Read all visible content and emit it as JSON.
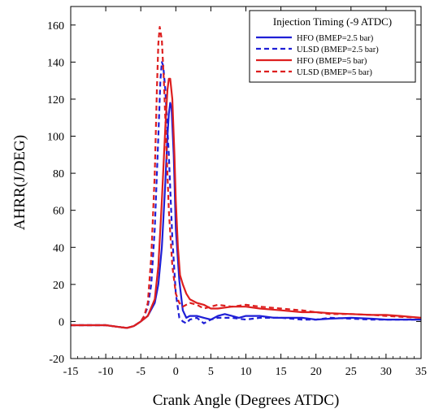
{
  "chart_data": {
    "type": "line",
    "title": "",
    "xlabel": "Crank Angle (Degrees ATDC)",
    "ylabel": "AHRR(J/DEG)",
    "xlim": [
      -15,
      35
    ],
    "ylim": [
      -20,
      170
    ],
    "xticks": [
      -15,
      -10,
      -5,
      0,
      5,
      10,
      15,
      20,
      25,
      30,
      35
    ],
    "yticks": [
      -20,
      0,
      20,
      40,
      60,
      80,
      100,
      120,
      140,
      160
    ],
    "grid": false,
    "legend": {
      "title": "Injection Timing (-9 ATDC)",
      "position": "top-right"
    },
    "series": [
      {
        "name": "HFO (BMEP=2.5 bar)",
        "color": "#1f1fd6",
        "dash": "solid",
        "points": [
          [
            -15,
            -2
          ],
          [
            -10,
            -2
          ],
          [
            -8,
            -3
          ],
          [
            -7,
            -3.5
          ],
          [
            -6,
            -2.5
          ],
          [
            -5,
            0
          ],
          [
            -4,
            3
          ],
          [
            -3,
            10
          ],
          [
            -2.5,
            20
          ],
          [
            -2,
            40
          ],
          [
            -1.5,
            75
          ],
          [
            -1.2,
            100
          ],
          [
            -1,
            112
          ],
          [
            -0.8,
            118
          ],
          [
            -0.6,
            115
          ],
          [
            -0.3,
            90
          ],
          [
            0,
            50
          ],
          [
            0.5,
            22
          ],
          [
            1,
            6
          ],
          [
            1.5,
            2
          ],
          [
            2,
            3
          ],
          [
            3,
            3
          ],
          [
            4,
            2
          ],
          [
            5,
            1
          ],
          [
            6,
            3
          ],
          [
            7,
            4
          ],
          [
            8,
            3
          ],
          [
            9,
            2
          ],
          [
            10,
            3
          ],
          [
            12,
            3
          ],
          [
            14,
            2
          ],
          [
            16,
            2
          ],
          [
            18,
            2
          ],
          [
            20,
            1
          ],
          [
            22,
            1.5
          ],
          [
            25,
            2
          ],
          [
            28,
            1.5
          ],
          [
            30,
            1
          ],
          [
            32,
            1
          ],
          [
            35,
            1
          ]
        ]
      },
      {
        "name": "ULSD (BMEP=2.5 bar)",
        "color": "#1f1fd6",
        "dash": "dashed",
        "points": [
          [
            -15,
            -2
          ],
          [
            -10,
            -2
          ],
          [
            -8,
            -3
          ],
          [
            -7,
            -3.5
          ],
          [
            -6,
            -2.5
          ],
          [
            -5,
            0
          ],
          [
            -4.5,
            3
          ],
          [
            -4,
            8
          ],
          [
            -3.5,
            20
          ],
          [
            -3,
            50
          ],
          [
            -2.5,
            100
          ],
          [
            -2.2,
            130
          ],
          [
            -2,
            140
          ],
          [
            -1.8,
            138
          ],
          [
            -1.5,
            125
          ],
          [
            -1,
            90
          ],
          [
            -0.5,
            45
          ],
          [
            0,
            15
          ],
          [
            0.5,
            2
          ],
          [
            1,
            0
          ],
          [
            1.5,
            -1
          ],
          [
            2,
            1
          ],
          [
            3,
            2
          ],
          [
            4,
            -1
          ],
          [
            5,
            1
          ],
          [
            6,
            2
          ],
          [
            8,
            2
          ],
          [
            10,
            1
          ],
          [
            12,
            2
          ],
          [
            15,
            2
          ],
          [
            18,
            1
          ],
          [
            20,
            1
          ],
          [
            22,
            2
          ],
          [
            25,
            1.5
          ],
          [
            28,
            1
          ],
          [
            30,
            1
          ],
          [
            33,
            1
          ],
          [
            35,
            1
          ]
        ]
      },
      {
        "name": "HFO (BMEP=5 bar)",
        "color": "#dd1f1f",
        "dash": "solid",
        "points": [
          [
            -15,
            -2
          ],
          [
            -10,
            -2
          ],
          [
            -8,
            -3
          ],
          [
            -7,
            -3.5
          ],
          [
            -6,
            -2.5
          ],
          [
            -5,
            0
          ],
          [
            -4,
            3
          ],
          [
            -3,
            12
          ],
          [
            -2.5,
            30
          ],
          [
            -2,
            65
          ],
          [
            -1.5,
            105
          ],
          [
            -1.2,
            125
          ],
          [
            -1,
            131
          ],
          [
            -0.8,
            131
          ],
          [
            -0.5,
            120
          ],
          [
            -0.2,
            90
          ],
          [
            0,
            65
          ],
          [
            0.3,
            40
          ],
          [
            0.6,
            25
          ],
          [
            1,
            20
          ],
          [
            1.5,
            15
          ],
          [
            2,
            12
          ],
          [
            3,
            10
          ],
          [
            4,
            9
          ],
          [
            5,
            7
          ],
          [
            6,
            7
          ],
          [
            8,
            8
          ],
          [
            10,
            8
          ],
          [
            12,
            7
          ],
          [
            15,
            6
          ],
          [
            18,
            5
          ],
          [
            20,
            5
          ],
          [
            22,
            4.5
          ],
          [
            25,
            4
          ],
          [
            28,
            3.5
          ],
          [
            30,
            3.5
          ],
          [
            32,
            3
          ],
          [
            35,
            2
          ]
        ]
      },
      {
        "name": "ULSD (BMEP=5 bar)",
        "color": "#dd1f1f",
        "dash": "dashed",
        "points": [
          [
            -15,
            -2
          ],
          [
            -10,
            -2
          ],
          [
            -8,
            -3
          ],
          [
            -7,
            -3.5
          ],
          [
            -6,
            -2.5
          ],
          [
            -5,
            0
          ],
          [
            -4.5,
            3
          ],
          [
            -4,
            10
          ],
          [
            -3.5,
            35
          ],
          [
            -3,
            80
          ],
          [
            -2.7,
            125
          ],
          [
            -2.5,
            150
          ],
          [
            -2.3,
            159
          ],
          [
            -2,
            152
          ],
          [
            -1.7,
            130
          ],
          [
            -1.3,
            90
          ],
          [
            -1,
            60
          ],
          [
            -0.5,
            30
          ],
          [
            0,
            15
          ],
          [
            0.5,
            10
          ],
          [
            1,
            8
          ],
          [
            2,
            10
          ],
          [
            3,
            9
          ],
          [
            4,
            7
          ],
          [
            5,
            8
          ],
          [
            6,
            9
          ],
          [
            8,
            8
          ],
          [
            10,
            9
          ],
          [
            12,
            8
          ],
          [
            15,
            7
          ],
          [
            18,
            6
          ],
          [
            20,
            5
          ],
          [
            22,
            4
          ],
          [
            25,
            4
          ],
          [
            28,
            3.5
          ],
          [
            30,
            3
          ],
          [
            32,
            2.5
          ],
          [
            35,
            2
          ]
        ]
      }
    ]
  }
}
